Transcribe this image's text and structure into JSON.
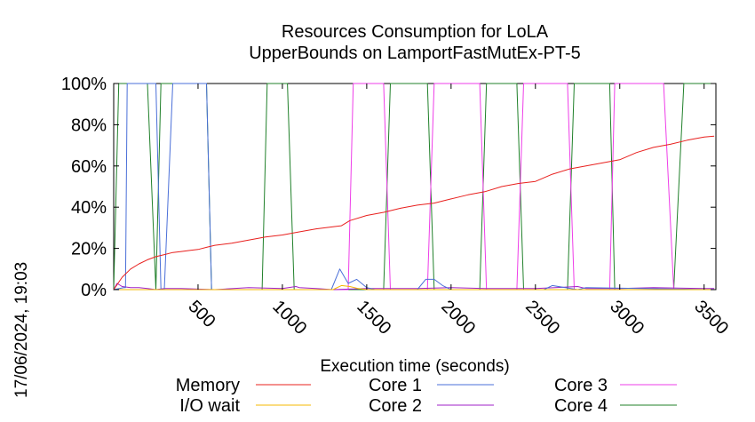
{
  "chart_data": {
    "type": "line",
    "title_line1": "Resources Consumption for LoLA",
    "title_line2": "UpperBounds on LamportFastMutEx-PT-5",
    "xlabel": "Execution time (seconds)",
    "ylabel": "",
    "timestamp": "17/06/2024, 19:03",
    "xlim": [
      0,
      3570
    ],
    "ylim": [
      0,
      100
    ],
    "xticks": [
      500,
      1000,
      1500,
      2000,
      2500,
      3000,
      3500
    ],
    "yticks": [
      0,
      20,
      40,
      60,
      80,
      100
    ],
    "ytick_labels": [
      "0%",
      "20%",
      "40%",
      "60%",
      "80%",
      "100%"
    ],
    "grid": false,
    "legend_position": "bottom",
    "series": [
      {
        "name": "Memory",
        "color": "#e8201e",
        "x": [
          0,
          50,
          100,
          150,
          200,
          250,
          300,
          350,
          400,
          450,
          500,
          550,
          600,
          700,
          800,
          900,
          1000,
          1100,
          1200,
          1300,
          1350,
          1400,
          1500,
          1600,
          1700,
          1800,
          1900,
          2000,
          2100,
          2200,
          2300,
          2400,
          2500,
          2600,
          2700,
          2800,
          2900,
          3000,
          3100,
          3200,
          3300,
          3400,
          3500,
          3560
        ],
        "y": [
          0,
          6,
          10,
          12.5,
          14.5,
          16,
          17,
          18,
          18.5,
          19,
          19.5,
          20.5,
          21.5,
          22.5,
          24,
          25.5,
          26.5,
          28,
          29.5,
          30.5,
          31,
          33.5,
          36,
          37.5,
          39.5,
          41,
          42,
          44,
          46,
          47.5,
          50,
          51.5,
          52.5,
          56,
          58.5,
          60,
          61.5,
          63,
          66.5,
          69,
          70.5,
          72.5,
          74,
          74.5
        ]
      },
      {
        "name": "I/O wait",
        "color": "#f5b800",
        "x": [
          0,
          1300,
          1350,
          1400,
          1450,
          1500,
          3560
        ],
        "y": [
          0,
          0,
          2,
          1.5,
          0.5,
          0,
          0
        ]
      },
      {
        "name": "Core 1",
        "color": "#4a6fd8",
        "x": [
          0,
          60,
          70,
          80,
          90,
          100,
          250,
          280,
          300,
          350,
          550,
          580,
          1290,
          1340,
          1390,
          1440,
          1500,
          1550,
          1800,
          1850,
          1900,
          1950,
          2000,
          2550,
          2600,
          2750,
          2800,
          3560
        ],
        "y": [
          0,
          1,
          1,
          100,
          100,
          100,
          100,
          0,
          0,
          100,
          100,
          0,
          0,
          10,
          3,
          5,
          1,
          0,
          0,
          5,
          5,
          2,
          0,
          0,
          2,
          0,
          1,
          0
        ]
      },
      {
        "name": "Core 2",
        "color": "#a020c8",
        "x": [
          0,
          20,
          50,
          100,
          150,
          200,
          250,
          300,
          400,
          600,
          800,
          1000,
          1080,
          1100,
          1200,
          1300,
          1500,
          1800,
          2000,
          2200,
          2500,
          2750,
          2800,
          3000,
          3200,
          3500,
          3560
        ],
        "y": [
          0,
          3,
          1.5,
          1,
          1,
          0.5,
          0,
          0.5,
          0.5,
          0,
          1,
          0.5,
          1.5,
          1,
          0.5,
          0,
          0.5,
          0.5,
          1,
          0.5,
          0.5,
          1.5,
          0.5,
          0.5,
          1,
          0.5,
          0.5
        ]
      },
      {
        "name": "Core 3",
        "color": "#ee3de8",
        "x": [
          0,
          1390,
          1420,
          1460,
          1600,
          1640,
          1700,
          1860,
          1900,
          1940,
          2170,
          2210,
          2250,
          2390,
          2430,
          2470,
          2690,
          2730,
          2770,
          2940,
          2970,
          3000,
          3230,
          3260,
          3320,
          3560
        ],
        "y": [
          0,
          0,
          100,
          100,
          100,
          0,
          0,
          0,
          100,
          100,
          100,
          0,
          0,
          0,
          100,
          100,
          100,
          0,
          0,
          0,
          100,
          100,
          100,
          100,
          0,
          0
        ]
      },
      {
        "name": "Core 4",
        "color": "#20802a",
        "x": [
          0,
          30,
          50,
          70,
          200,
          250,
          280,
          320,
          550,
          580,
          600,
          880,
          910,
          1030,
          1070,
          1390,
          1420,
          1600,
          1640,
          1860,
          1900,
          2170,
          2210,
          2390,
          2430,
          2690,
          2730,
          2940,
          2970,
          3230,
          3260,
          3320,
          3380,
          3560
        ],
        "y": [
          0,
          100,
          100,
          100,
          100,
          0,
          100,
          100,
          100,
          0,
          0,
          0,
          100,
          100,
          0,
          0,
          0,
          0,
          100,
          100,
          0,
          0,
          100,
          100,
          0,
          0,
          100,
          100,
          0,
          0,
          0,
          0,
          100,
          100
        ]
      }
    ]
  }
}
